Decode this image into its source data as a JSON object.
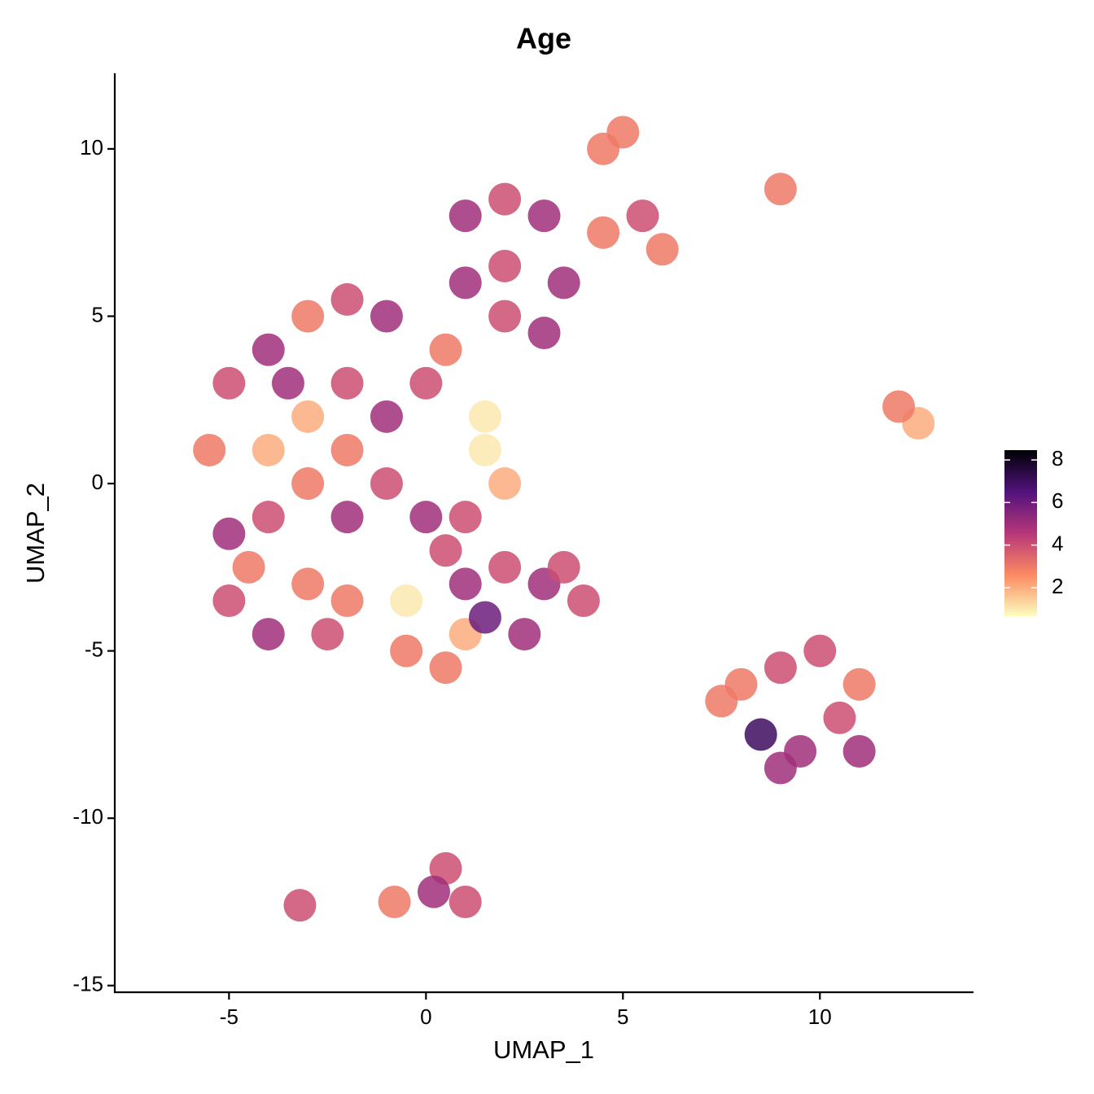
{
  "chart_data": {
    "type": "scatter",
    "title": "Age",
    "x_label": "UMAP_1",
    "y_label": "UMAP_2",
    "xlim": [
      -7.9,
      13.9
    ],
    "ylim": [
      -15.2,
      12.26
    ],
    "xticks": [
      -5,
      0,
      5,
      10
    ],
    "yticks": [
      -15,
      -10,
      -5,
      0,
      5,
      10
    ],
    "colormap": [
      "#fcfdbf",
      "#fc8961",
      "#b73779",
      "#51127c",
      "#000004"
    ],
    "colorbar": {
      "lim": [
        0.66,
        8.46
      ],
      "ticks": [
        2,
        4,
        6,
        8
      ]
    },
    "x": [
      -5,
      -4,
      -3,
      -2,
      -1,
      -5.5,
      -4,
      -3,
      -2,
      -1,
      -4,
      -3,
      -2,
      -1,
      0,
      0,
      0.5,
      1.5,
      2,
      1.5,
      1,
      -5,
      -2,
      -3.5,
      1,
      2,
      3,
      1,
      2,
      3.5,
      2,
      3,
      5,
      4.5,
      5.5,
      4.5,
      6,
      9,
      12.5,
      12,
      -5,
      -4,
      -3,
      -2.5,
      -4.5,
      -2,
      -0.5,
      0.5,
      1,
      -0.5,
      1,
      2,
      3,
      4,
      2.5,
      1.5,
      3.5,
      0.5,
      9,
      10,
      11,
      8.5,
      9.5,
      10.5,
      9,
      8,
      7.5,
      11,
      0.5,
      1,
      0.2,
      -3.2,
      -0.8
    ],
    "y": [
      3,
      4,
      5,
      5.5,
      5,
      1,
      1,
      2,
      3,
      2,
      -1,
      0,
      -1,
      0,
      -1,
      3,
      4,
      1,
      0,
      2,
      -1,
      -1.5,
      1,
      3,
      8,
      8.5,
      8,
      6,
      6.5,
      6,
      5,
      4.5,
      10.5,
      10,
      8,
      7.5,
      7,
      8.8,
      1.8,
      2.3,
      -3.5,
      -4.5,
      -3,
      -4.5,
      -2.5,
      -3.5,
      -5,
      -5.5,
      -4.5,
      -3.5,
      -3,
      -2.5,
      -3,
      -3.5,
      -4.5,
      -4,
      -2.5,
      -2,
      -5.5,
      -5,
      -6,
      -7.5,
      -8,
      -7,
      -8.5,
      -6,
      -6.5,
      -8,
      -11.5,
      -12.5,
      -12.2,
      -12.6,
      -12.5
    ],
    "values": [
      4,
      5,
      3,
      4,
      5,
      3,
      2,
      2,
      4,
      5,
      4,
      3,
      5,
      4,
      5,
      4,
      3,
      1,
      2,
      1,
      4,
      5,
      3,
      5,
      5,
      4,
      5,
      5,
      4,
      5,
      4,
      5,
      3,
      3,
      4,
      3,
      3,
      3,
      2,
      3,
      4,
      5,
      3,
      4,
      3,
      3,
      3,
      3,
      2,
      1,
      5,
      4,
      5,
      4,
      5,
      6,
      4,
      4,
      4,
      4,
      3,
      7,
      5,
      4,
      5,
      3,
      3,
      5,
      4,
      4,
      5,
      4,
      3
    ]
  }
}
